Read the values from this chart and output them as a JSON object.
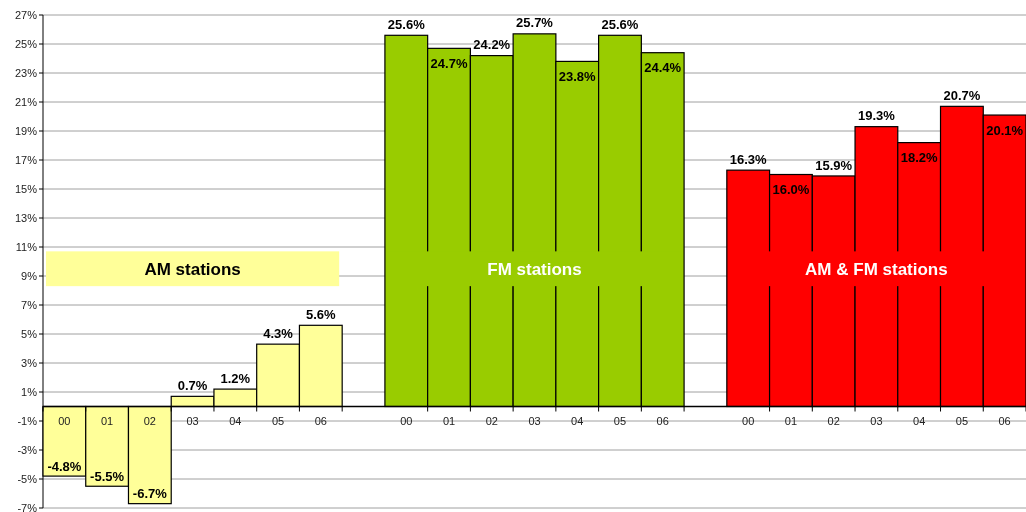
{
  "chart_data": {
    "type": "bar",
    "categories": [
      "00",
      "01",
      "02",
      "03",
      "04",
      "05",
      "06",
      null,
      "00",
      "01",
      "02",
      "03",
      "04",
      "05",
      "06",
      null,
      "00",
      "01",
      "02",
      "03",
      "04",
      "05",
      "06"
    ],
    "values": [
      -4.8,
      -5.5,
      -6.7,
      0.7,
      1.2,
      4.3,
      5.6,
      null,
      25.6,
      24.7,
      24.2,
      25.7,
      23.8,
      25.6,
      24.4,
      null,
      16.3,
      16.0,
      15.9,
      19.3,
      18.2,
      20.7,
      20.1
    ],
    "colors": [
      "#ffff99",
      "#ffff99",
      "#ffff99",
      "#ffff99",
      "#ffff99",
      "#ffff99",
      "#ffff99",
      null,
      "#99cc00",
      "#99cc00",
      "#99cc00",
      "#99cc00",
      "#99cc00",
      "#99cc00",
      "#99cc00",
      null,
      "#ff0000",
      "#ff0000",
      "#ff0000",
      "#ff0000",
      "#ff0000",
      "#ff0000",
      "#ff0000"
    ],
    "value_labels": [
      "-4.8%",
      "-5.5%",
      "-6.7%",
      "0.7%",
      "1.2%",
      "4.3%",
      "5.6%",
      null,
      "25.6%",
      "24.7%",
      "24.2%",
      "25.7%",
      "23.8%",
      "25.6%",
      "24.4%",
      null,
      "16.3%",
      "16.0%",
      "15.9%",
      "19.3%",
      "18.2%",
      "20.7%",
      "20.1%"
    ],
    "annotations": [
      "AM stations",
      "FM stations",
      "AM & FM stations"
    ],
    "ylim": [
      -7,
      27
    ],
    "yticks": [
      {
        "value": -7,
        "label": "-7%"
      },
      {
        "value": -5,
        "label": "-5%"
      },
      {
        "value": -3,
        "label": "-3%"
      },
      {
        "value": -1,
        "label": "-1%"
      },
      {
        "value": 1,
        "label": "1%"
      },
      {
        "value": 3,
        "label": "3%"
      },
      {
        "value": 5,
        "label": "5%"
      },
      {
        "value": 7,
        "label": "7%"
      },
      {
        "value": 9,
        "label": "9%"
      },
      {
        "value": 11,
        "label": "11%"
      },
      {
        "value": 13,
        "label": "13%"
      },
      {
        "value": 15,
        "label": "15%"
      },
      {
        "value": 17,
        "label": "17%"
      },
      {
        "value": 19,
        "label": "19%"
      },
      {
        "value": 21,
        "label": "21%"
      },
      {
        "value": 23,
        "label": "23%"
      },
      {
        "value": 25,
        "label": "25%"
      },
      {
        "value": 27,
        "label": "27%"
      }
    ],
    "grid": "y"
  }
}
